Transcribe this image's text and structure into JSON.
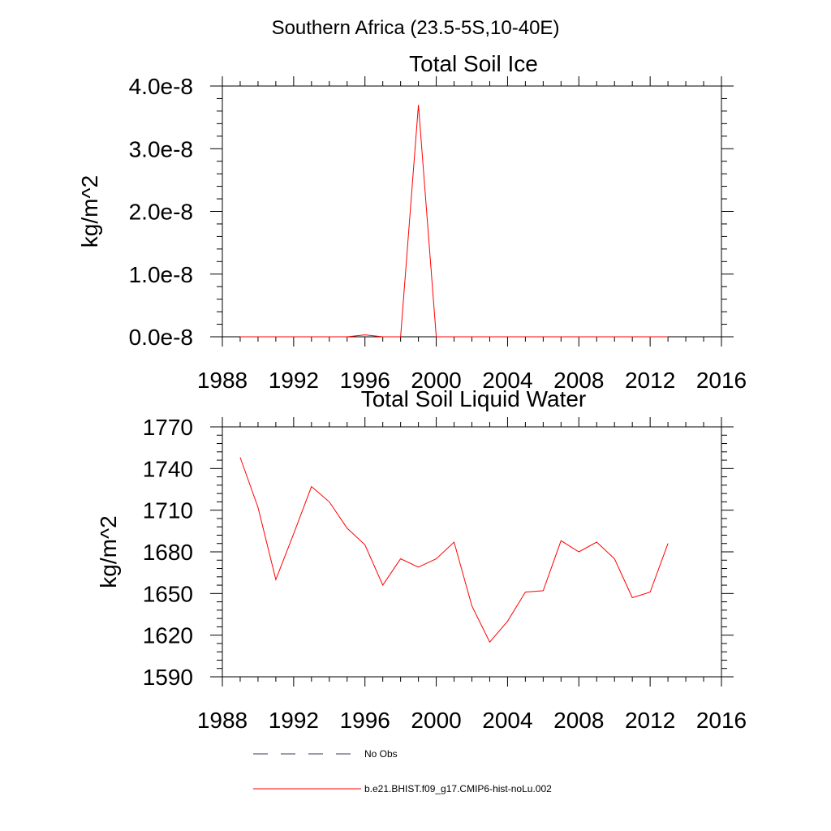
{
  "figure": {
    "region_title": "Southern Africa (23.5-5S,10-40E)"
  },
  "chart_data": [
    {
      "type": "line",
      "title": "Total Soil Ice",
      "ylabel": "kg/m^2",
      "xlabel": "",
      "xlim": [
        1988,
        2016
      ],
      "ylim": [
        0,
        4e-08
      ],
      "x_ticks": [
        1988,
        1992,
        1996,
        2000,
        2004,
        2008,
        2012,
        2016
      ],
      "x_tick_labels": [
        "1988",
        "1992",
        "1996",
        "2000",
        "2004",
        "2008",
        "2012",
        "2016"
      ],
      "y_ticks": [
        0,
        1e-08,
        2e-08,
        3e-08,
        4e-08
      ],
      "y_tick_labels": [
        "0.0e-8",
        "1.0e-8",
        "2.0e-8",
        "3.0e-8",
        "4.0e-8"
      ],
      "grid": false,
      "series": [
        {
          "name": "b.e21.BHIST.f09_g17.CMIP6-hist-noLu.002",
          "color": "#ff0000",
          "x": [
            1989,
            1990,
            1991,
            1992,
            1993,
            1994,
            1995,
            1996,
            1997,
            1998,
            1999,
            2000,
            2001,
            2002,
            2003,
            2004,
            2005,
            2006,
            2007,
            2008,
            2009,
            2010,
            2011,
            2012,
            2013
          ],
          "y": [
            0,
            0,
            0,
            0,
            0,
            0,
            0,
            3e-10,
            0,
            0,
            3.7e-08,
            0,
            0,
            0,
            0,
            0,
            0,
            0,
            0,
            0,
            0,
            0,
            0,
            0,
            0
          ]
        }
      ]
    },
    {
      "type": "line",
      "title": "Total Soil Liquid Water",
      "ylabel": "kg/m^2",
      "xlabel": "",
      "xlim": [
        1988,
        2016
      ],
      "ylim": [
        1590,
        1770
      ],
      "x_ticks": [
        1988,
        1992,
        1996,
        2000,
        2004,
        2008,
        2012,
        2016
      ],
      "x_tick_labels": [
        "1988",
        "1992",
        "1996",
        "2000",
        "2004",
        "2008",
        "2012",
        "2016"
      ],
      "y_ticks": [
        1590,
        1620,
        1650,
        1680,
        1710,
        1740,
        1770
      ],
      "y_tick_labels": [
        "1590",
        "1620",
        "1650",
        "1680",
        "1710",
        "1740",
        "1770"
      ],
      "grid": false,
      "series": [
        {
          "name": "b.e21.BHIST.f09_g17.CMIP6-hist-noLu.002",
          "color": "#ff0000",
          "x": [
            1989,
            1990,
            1991,
            1992,
            1993,
            1994,
            1995,
            1996,
            1997,
            1998,
            1999,
            2000,
            2001,
            2002,
            2003,
            2004,
            2005,
            2006,
            2007,
            2008,
            2009,
            2010,
            2011,
            2012,
            2013
          ],
          "y": [
            1748,
            1712,
            1660,
            1693,
            1727,
            1716,
            1697,
            1685,
            1656,
            1675,
            1669,
            1675,
            1687,
            1641,
            1615,
            1630,
            1651,
            1652,
            1688,
            1680,
            1687,
            1675,
            1647,
            1651,
            1686
          ]
        }
      ]
    }
  ],
  "legend": {
    "placement": "bottom",
    "entries": [
      {
        "label": "No Obs",
        "color": "#3b3b5c",
        "style": "dashed"
      },
      {
        "label": "b.e21.BHIST.f09_g17.CMIP6-hist-noLu.002",
        "color": "#ff0000",
        "style": "solid"
      }
    ]
  }
}
